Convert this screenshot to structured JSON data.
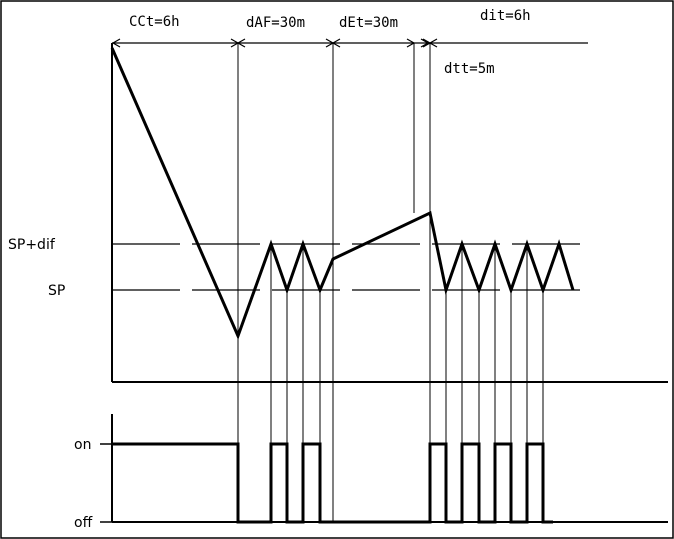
{
  "labels": {
    "cct": "CCt=6h",
    "daf": "dAF=30m",
    "det": "dEt=30m",
    "dit": "dit=6h",
    "dtt": "dtt=5m",
    "sp_dif": "SP+dif",
    "sp": "SP",
    "on": "on",
    "off": "off"
  },
  "colors": {
    "line": "#000000",
    "background": "#ffffff"
  }
}
